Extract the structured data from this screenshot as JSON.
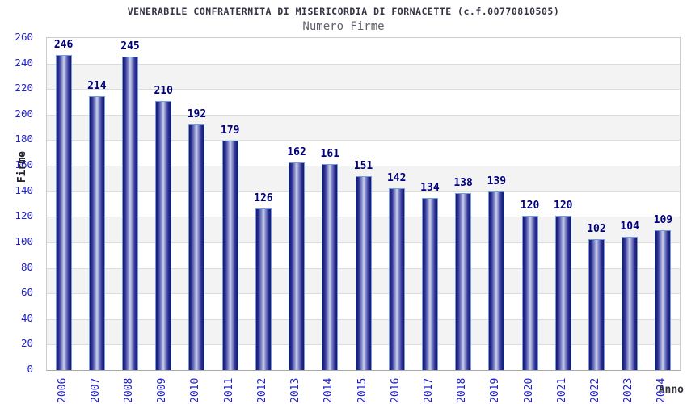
{
  "header": {
    "title": "VENERABILE CONFRATERNITA DI MISERICORDIA DI FORNACETTE (c.f.00770810505)",
    "subtitle": "Numero Firme"
  },
  "chart_data": {
    "type": "bar",
    "title": "VENERABILE CONFRATERNITA DI MISERICORDIA DI FORNACETTE (c.f.00770810505)",
    "subtitle": "Numero Firme",
    "xlabel": "Anno",
    "ylabel": "Firme",
    "categories": [
      "2006",
      "2007",
      "2008",
      "2009",
      "2010",
      "2011",
      "2012",
      "2013",
      "2014",
      "2015",
      "2016",
      "2017",
      "2018",
      "2019",
      "2020",
      "2021",
      "2022",
      "2023",
      "2024"
    ],
    "values": [
      246,
      214,
      245,
      210,
      192,
      179,
      126,
      162,
      161,
      151,
      142,
      134,
      138,
      139,
      120,
      120,
      102,
      104,
      109
    ],
    "ylim": [
      0,
      260
    ],
    "ytick_step": 20,
    "legend": "none",
    "grid": "horizontal gridlines every 20 with alternating white/gray bands",
    "colors": {
      "bar_dark": "#17176b",
      "bar_mid": "#2e2e96",
      "bar_highlight": "#ccd3ee",
      "bar_outline": "#6f9fe0",
      "tick_label": "#2222cc",
      "value_label": "#00007b",
      "title": "#333344",
      "subtitle": "#606068",
      "band_gray": "#f3f3f3",
      "gridline": "#dcdcdc"
    }
  }
}
